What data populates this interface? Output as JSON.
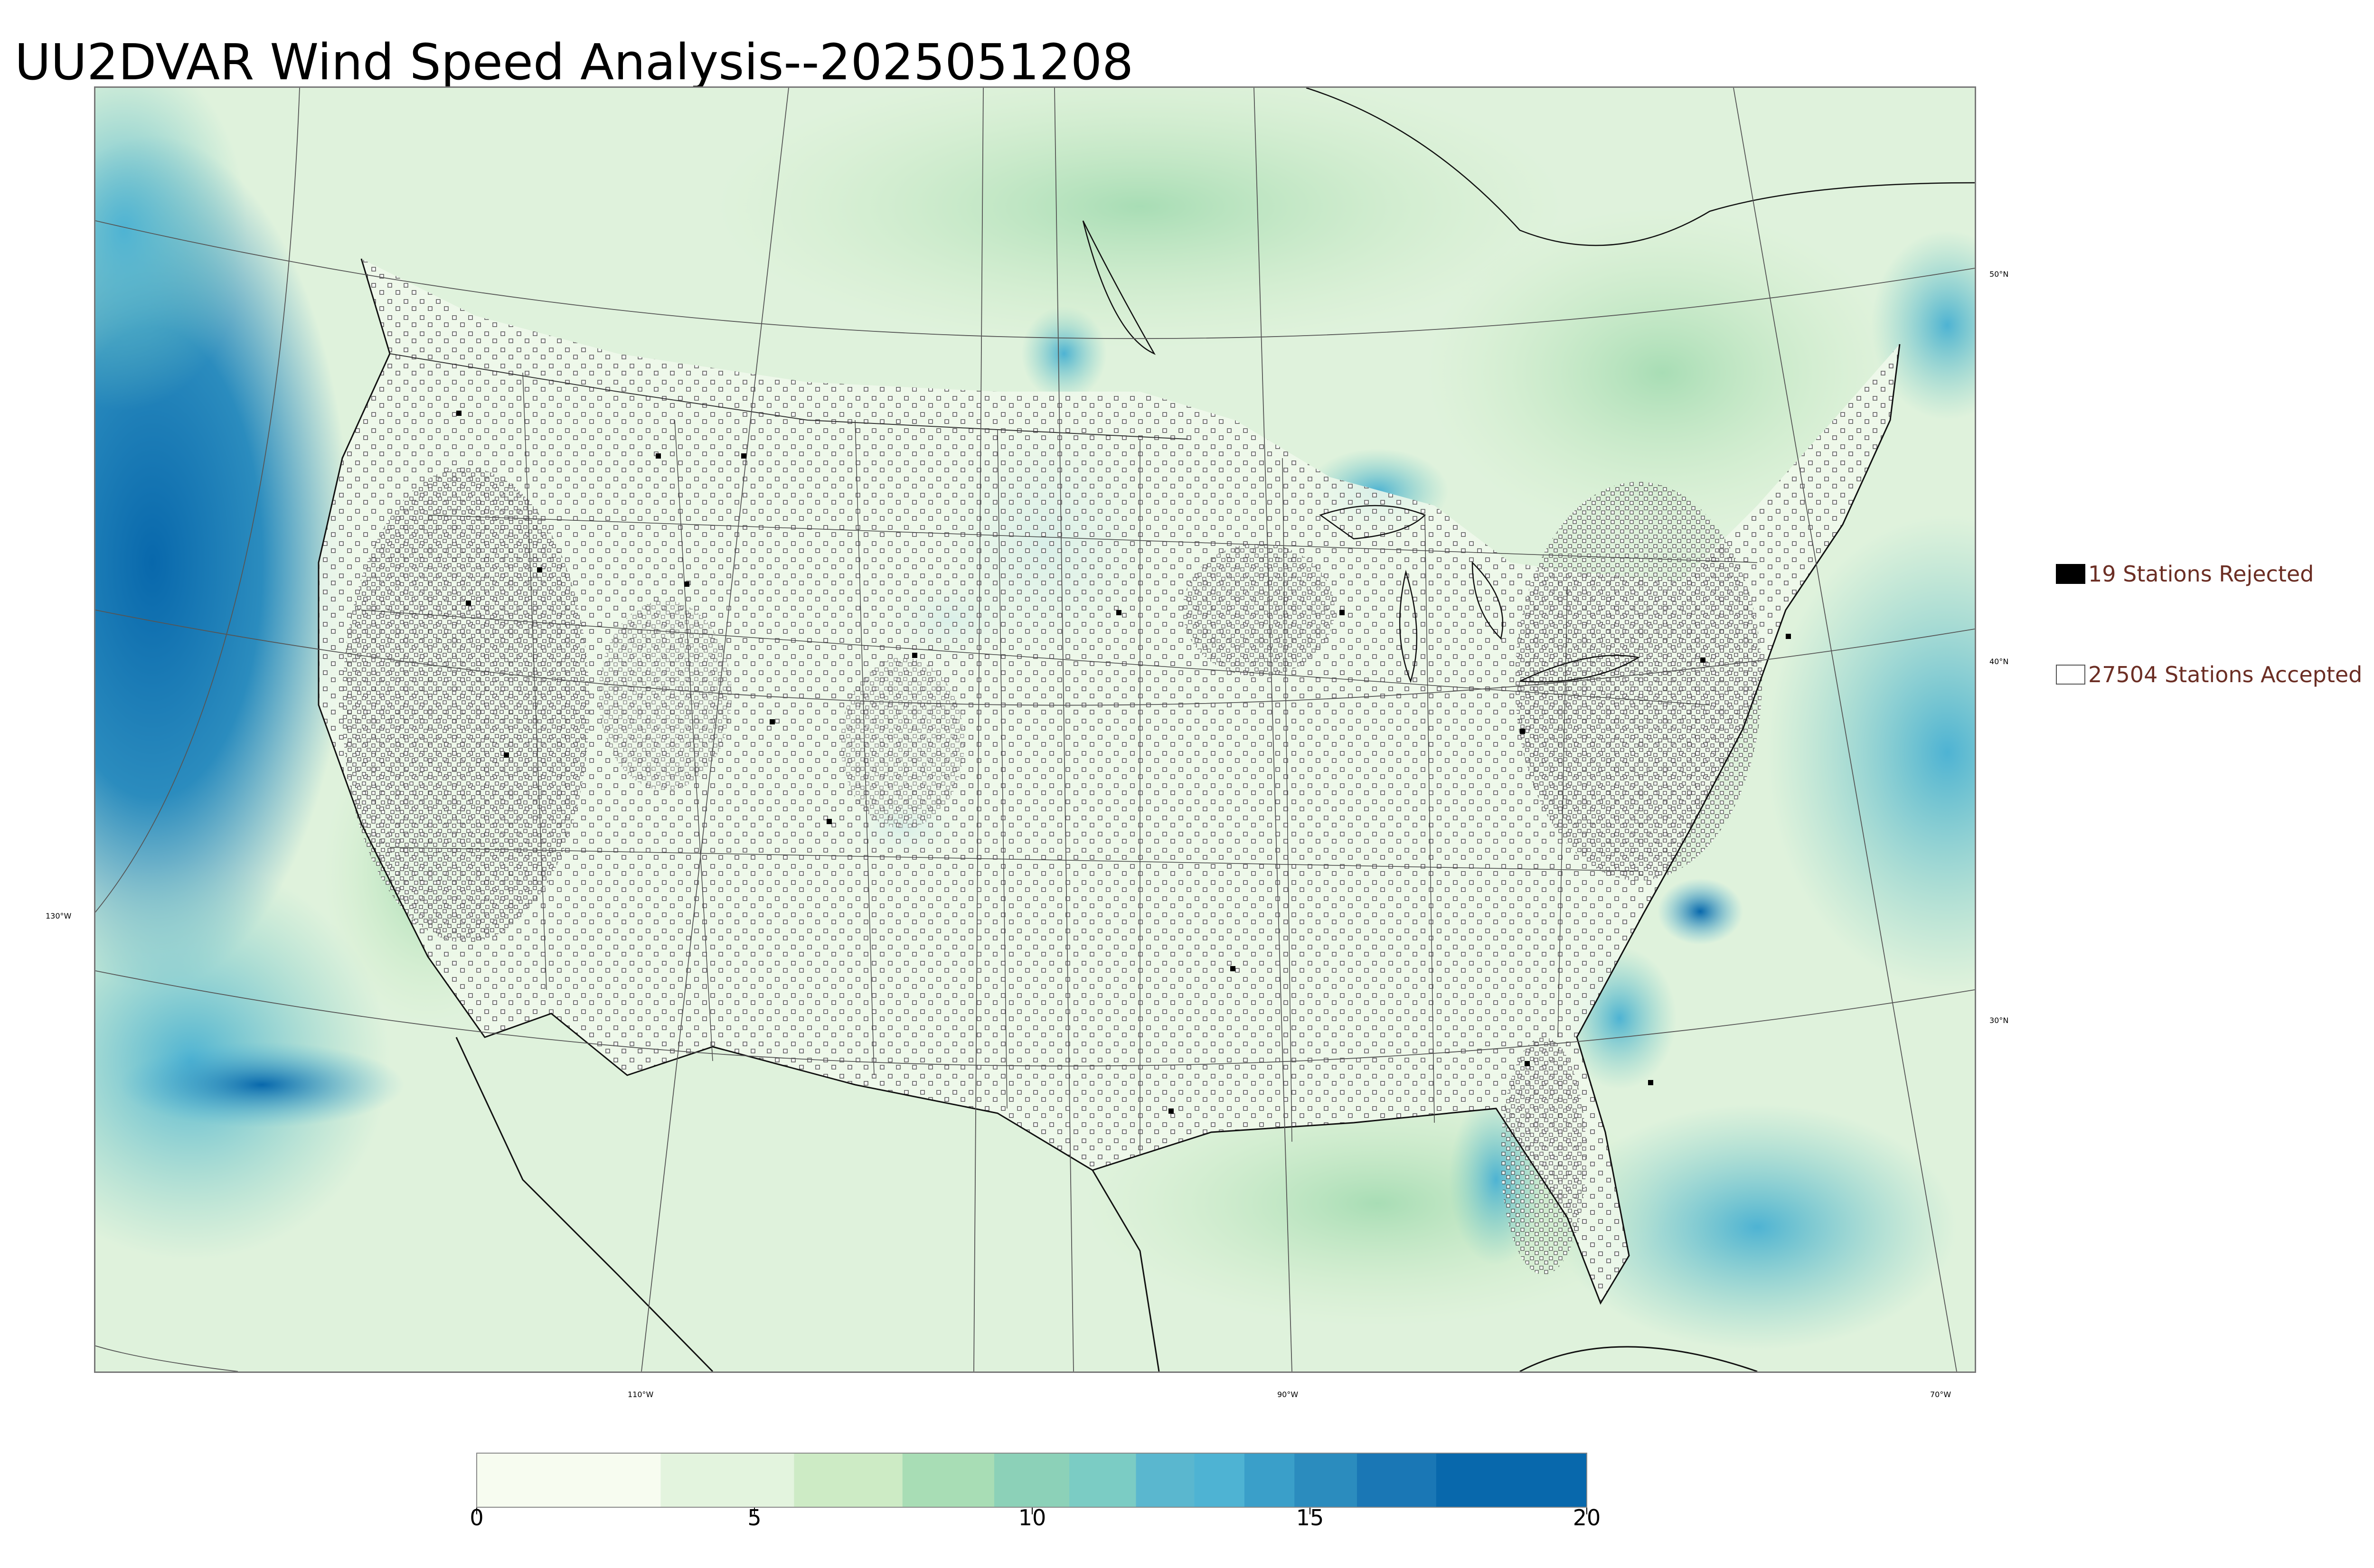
{
  "title": "UU2DVAR Wind Speed Analysis--2025051208",
  "map": {
    "lat_labels": [
      "50°N",
      "40°N",
      "30°N"
    ],
    "lon_labels": [
      "130°W",
      "110°W",
      "90°W",
      "70°W"
    ]
  },
  "legend": {
    "rejected": {
      "label": "19 Stations Rejected",
      "marker_color": "#000000"
    },
    "accepted": {
      "label": "27504 Stations Accepted",
      "marker_color": "#ffffff"
    }
  },
  "colorbar": {
    "ticks": [
      "0",
      "5",
      "10",
      "15",
      "20"
    ],
    "colors": [
      "#f7fcf0",
      "#e3f4de",
      "#cdebc5",
      "#a8ddb5",
      "#8cd1b8",
      "#7bccc4",
      "#5ab7cf",
      "#4eb3d3",
      "#3a9fc9",
      "#2b8cbe",
      "#1a77b5",
      "#0868ac"
    ],
    "min": 0,
    "max": 20
  }
}
